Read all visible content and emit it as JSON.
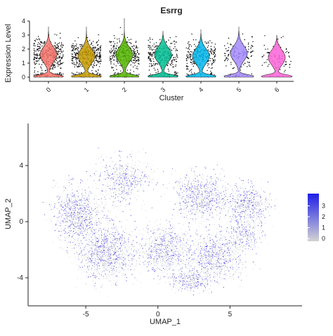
{
  "chart_data": [
    {
      "type": "violin",
      "title": "Esrrg",
      "xlabel": "Cluster",
      "ylabel": "Expression Level",
      "ylim": [
        0,
        4
      ],
      "y_ticks": [
        "0",
        "1",
        "2",
        "3",
        "4"
      ],
      "categories": [
        "0",
        "1",
        "2",
        "3",
        "4",
        "5",
        "6"
      ],
      "colors": [
        "#f8766d",
        "#c49a00",
        "#53b400",
        "#00c094",
        "#00b6eb",
        "#a58aff",
        "#fb61d7"
      ],
      "series": [
        {
          "category": "0",
          "max": 3.6,
          "density_peaks": [
            0.0,
            1.6
          ]
        },
        {
          "category": "1",
          "max": 3.6,
          "density_peaks": [
            0.0,
            1.5
          ]
        },
        {
          "category": "2",
          "max": 4.2,
          "density_peaks": [
            0.0,
            1.6
          ]
        },
        {
          "category": "3",
          "max": 3.3,
          "density_peaks": [
            0.0,
            1.6
          ]
        },
        {
          "category": "4",
          "max": 3.4,
          "density_peaks": [
            0.0,
            1.5
          ]
        },
        {
          "category": "5",
          "max": 3.6,
          "density_peaks": [
            0.0,
            1.7
          ]
        },
        {
          "category": "6",
          "max": 3.0,
          "density_peaks": [
            0.0,
            1.4
          ]
        }
      ]
    },
    {
      "type": "scatter",
      "title": "",
      "xlabel": "UMAP_1",
      "ylabel": "UMAP_2",
      "x_ticks": [
        "-5",
        "0",
        "5"
      ],
      "y_ticks": [
        "-4",
        "0",
        "4"
      ],
      "xlim": [
        -9,
        10
      ],
      "ylim": [
        -6,
        7
      ],
      "color_scale": {
        "low": "#d3d3d3",
        "high": "#1e1ee8"
      },
      "legend_ticks": [
        "0",
        "1",
        "2",
        "3"
      ],
      "legend_position": "right"
    }
  ]
}
